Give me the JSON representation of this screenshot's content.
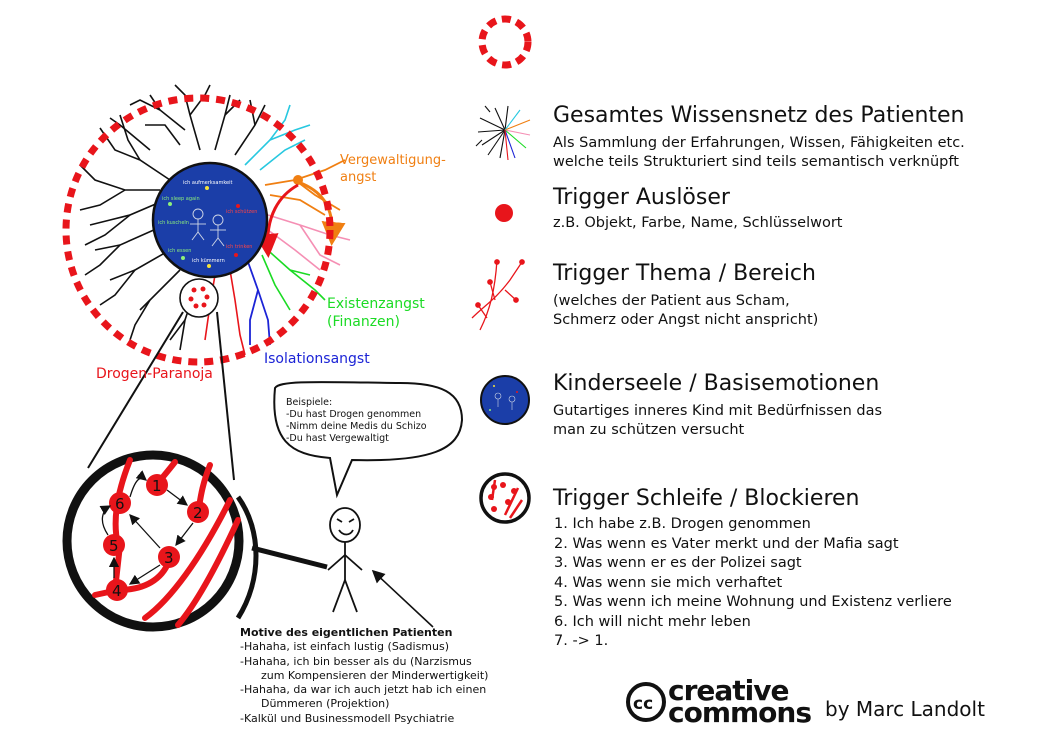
{
  "regions": {
    "vergewaltigung": "Vergewaltigung-\nangst",
    "existenz": "Existenzangst\n(Finanzen)",
    "isolation": "Isolationsangst",
    "drogen": "Drogen-Paranoja"
  },
  "inner_child_labels": [
    "ich aufmerksamkeit",
    "ich sleep again",
    "ich kuscheln",
    "ich essen",
    "ich kümmern",
    "ich schützen",
    "ich trinken"
  ],
  "speech_bubble": {
    "heading": "Beispiele:",
    "lines": [
      "-Du hast Drogen genommen",
      "-Nimm deine Medis du Schizo",
      "-Du hast Vergewaltigt"
    ]
  },
  "motives": {
    "heading": "Motive des eigentlichen Patienten",
    "lines": [
      "-Hahaha, ist einfach lustig (Sadismus)",
      "-Hahaha, ich bin besser als du (Narzismus",
      "      zum Kompensieren der Minderwertigkeit)",
      "-Hahaha, da war ich auch jetzt hab ich einen",
      "      Dümmeren (Projektion)",
      "-Kalkül und Businessmodell Psychiatrie"
    ]
  },
  "loop_nodes": [
    "1",
    "2",
    "3",
    "4",
    "5",
    "6"
  ],
  "legend": [
    {
      "title": "Gesamtes Wissensnetz des Patienten",
      "sub": [
        "Als Sammlung der Erfahrungen, Wissen, Fähigkeiten etc.",
        "welche teils Strukturiert sind teils semantisch verknüpft"
      ]
    },
    {
      "title": "Trigger Auslöser",
      "sub": [
        "z.B. Objekt, Farbe, Name, Schlüsselwort"
      ]
    },
    {
      "title": "Trigger Thema / Bereich",
      "sub": [
        "(welches der Patient aus Scham,",
        "Schmerz oder Angst nicht anspricht)"
      ]
    },
    {
      "title": "Kinderseele / Basisemotionen",
      "sub": [
        "Gutartiges inneres Kind mit Bedürfnissen das",
        "man zu schützen versucht"
      ]
    },
    {
      "title": "Trigger Schleife / Blockieren",
      "sub": []
    }
  ],
  "loop_steps": [
    "1. Ich habe z.B. Drogen genommen",
    "2. Was wenn es Vater merkt und der Mafia sagt",
    "3. Was wenn er es der Polizei sagt",
    "4. Was wenn sie mich verhaftet",
    "5. Was wenn ich meine Wohnung und Existenz verliere",
    "6. Ich will nicht mehr leben",
    "7. -> 1."
  ],
  "license": {
    "logo_line1": "creative",
    "logo_line2": "commons",
    "cc": "cc"
  },
  "author": "by Marc Landolt",
  "colors": {
    "red": "#e8151b",
    "orange": "#f07f12",
    "green": "#1bdb24",
    "blue": "#1c24d6",
    "pink": "#f58fb4",
    "cyan": "#27c8e0",
    "core": "#1b3ea8"
  }
}
